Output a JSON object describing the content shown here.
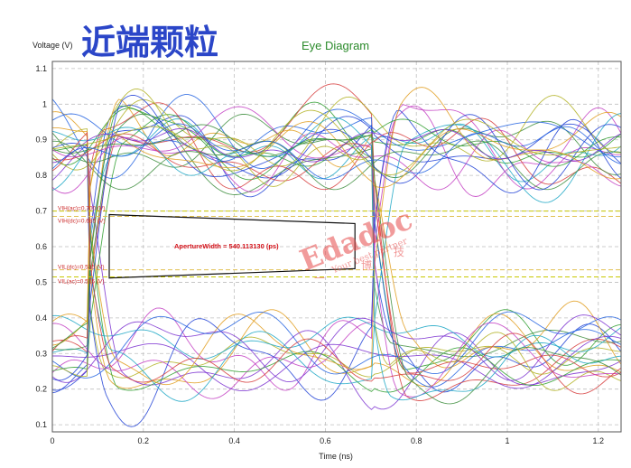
{
  "overlay_title": "近端颗粒",
  "chart_data": {
    "type": "line",
    "title": "Eye Diagram",
    "xlabel": "Time (ns)",
    "ylabel": "Voltage (V)",
    "xlim": [
      0,
      1.25
    ],
    "ylim": [
      0.08,
      1.12
    ],
    "x_ticks": [
      0,
      0.2,
      0.4,
      0.6,
      0.8,
      1,
      1.2
    ],
    "x_tick_labels": [
      "0",
      "0.2",
      "0.4",
      "0.6",
      "0.8",
      "1",
      "1.2"
    ],
    "y_ticks": [
      0.1,
      0.2,
      0.3,
      0.4,
      0.5,
      0.6,
      0.7,
      0.8,
      0.9,
      1,
      1.1
    ],
    "y_tick_labels": [
      "0.1",
      "0.2",
      "0.3",
      "0.4",
      "0.5",
      "0.6",
      "0.7",
      "0.8",
      "0.9",
      "1",
      "1.1"
    ],
    "grid": true,
    "unit_interval_ns": 0.625,
    "crossing_times_ns": [
      0.08,
      0.705
    ],
    "high_level_v": 0.88,
    "low_level_v": 0.3,
    "threshold_lines_v": [
      0.7,
      0.685,
      0.535,
      0.515
    ],
    "threshold_labels": [
      "VIH(ac)=0.700 (V)",
      "VIH(dc)=0.685 (V)",
      "VIL(dc)=0.535 (V)",
      "VIL(ac)=0.515 (V)"
    ],
    "aperture": {
      "label": "ApertureWidth = 540.113130 (ps)",
      "left_x_ns": 0.125,
      "right_x_ns": 0.665,
      "left_top_v": 0.69,
      "left_bottom_v": 0.512,
      "right_top_v": 0.665,
      "right_bottom_v": 0.538
    },
    "trace_count": 40
  },
  "watermark": {
    "main": "Edadoc",
    "tagline": "Your best partner",
    "chars": [
      "一",
      "博",
      "技"
    ]
  },
  "colors": {
    "trace_palette": [
      "#1f3fd6",
      "#2e9e2e",
      "#c23cc2",
      "#e09b1a",
      "#1aa6c4",
      "#d63a3a",
      "#7a2fd0",
      "#3b8c3b",
      "#2060e0",
      "#b0b020"
    ],
    "grid": "#bfbfbf",
    "threshold_ac": "#c8c800",
    "threshold_dc": "#e0c050",
    "title_overlay": "#2b46c8",
    "chart_title": "#2a8a2a",
    "annotation": "#cc2b2b"
  }
}
